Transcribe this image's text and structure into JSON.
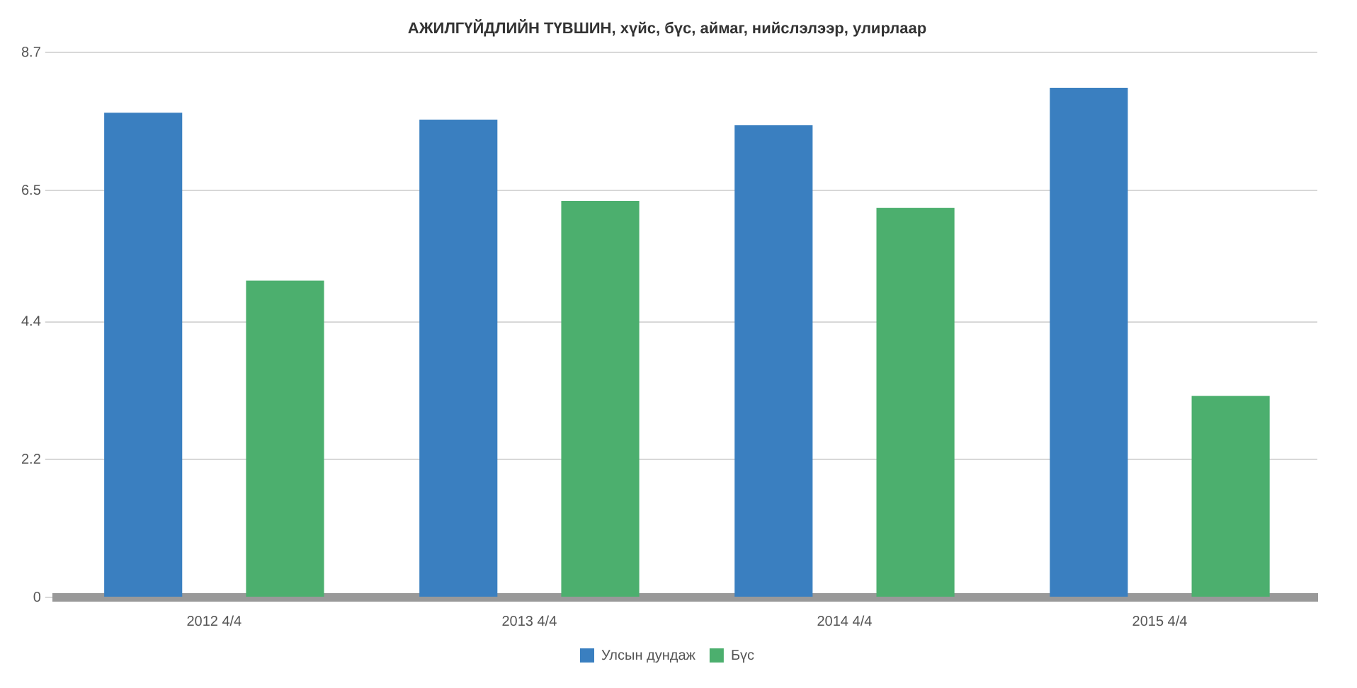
{
  "chart_data": {
    "type": "bar",
    "title": "АЖИЛГҮЙДЛИЙН ТҮВШИН, хүйс, бүс, аймаг, нийслэлээр, улирлаар",
    "categories": [
      "2012 4/4",
      "2013 4/4",
      "2014 4/4",
      "2015 4/4"
    ],
    "series": [
      {
        "name": "Улсын дундаж",
        "color": "#3a7fc0",
        "values": [
          7.74,
          7.63,
          7.54,
          8.14
        ]
      },
      {
        "name": "Бүс",
        "color": "#4caf6e",
        "values": [
          5.06,
          6.33,
          6.22,
          3.22
        ]
      }
    ],
    "ylim": [
      0,
      8.7
    ],
    "yticks": [
      0,
      2.2,
      4.4,
      6.5,
      8.7
    ],
    "grid": "y",
    "legend": "bottom"
  }
}
